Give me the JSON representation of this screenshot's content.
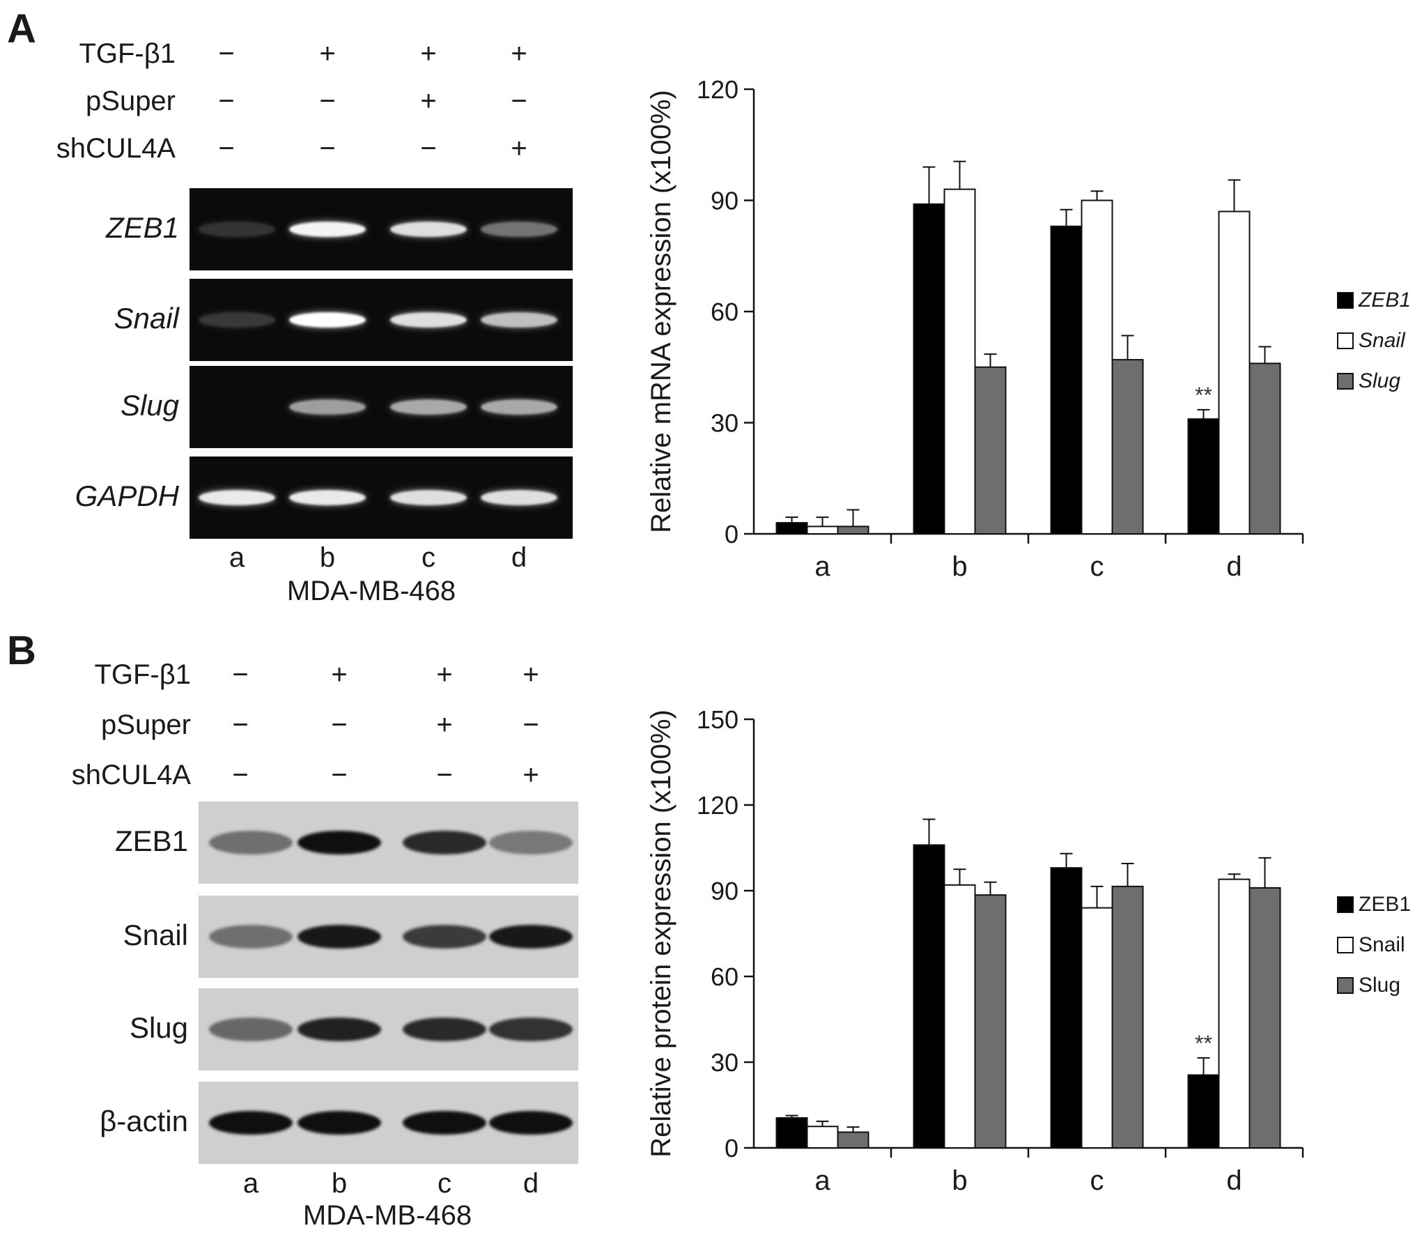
{
  "panels": [
    {
      "letter": "A",
      "conditions": [
        {
          "name": "TGF-β1",
          "signs": [
            "−",
            "+",
            "+",
            "+"
          ]
        },
        {
          "name": "pSuper",
          "signs": [
            "−",
            "−",
            "+",
            "−"
          ]
        },
        {
          "name": "shCUL4A",
          "signs": [
            "−",
            "−",
            "−",
            "+"
          ]
        }
      ],
      "rows": [
        {
          "label": "ZEB1",
          "italic": true
        },
        {
          "label": "Snail",
          "italic": true
        },
        {
          "label": "Slug",
          "italic": true
        },
        {
          "label": "GAPDH",
          "italic": true
        }
      ],
      "lanes": [
        "a",
        "b",
        "c",
        "d"
      ],
      "cell_line": "MDA-MB-468"
    },
    {
      "letter": "B",
      "conditions": [
        {
          "name": "TGF-β1",
          "signs": [
            "−",
            "+",
            "+",
            "+"
          ]
        },
        {
          "name": "pSuper",
          "signs": [
            "−",
            "−",
            "+",
            "−"
          ]
        },
        {
          "name": "shCUL4A",
          "signs": [
            "−",
            "−",
            "−",
            "+"
          ]
        }
      ],
      "rows": [
        {
          "label": "ZEB1",
          "italic": false
        },
        {
          "label": "Snail",
          "italic": false
        },
        {
          "label": "Slug",
          "italic": false
        },
        {
          "label": "β-actin",
          "italic": false
        }
      ],
      "lanes": [
        "a",
        "b",
        "c",
        "d"
      ],
      "cell_line": "MDA-MB-468"
    }
  ],
  "chart_data": [
    {
      "type": "bar",
      "panel": "A",
      "title": "",
      "ylabel": "Relative mRNA expression (x100%)",
      "xlabel": "",
      "categories": [
        "a",
        "b",
        "c",
        "d"
      ],
      "ylim": [
        0,
        120
      ],
      "yticks": [
        0,
        30,
        60,
        90,
        120
      ],
      "legend_italic": true,
      "legend_position": "right",
      "series": [
        {
          "name": "ZEB1",
          "color": "#000000",
          "values": [
            3,
            89,
            83,
            31
          ],
          "errors": [
            1.5,
            10,
            4.5,
            2.5
          ]
        },
        {
          "name": "Snail",
          "color": "#ffffff",
          "values": [
            2,
            93,
            90,
            87
          ],
          "errors": [
            2.5,
            7.5,
            2.5,
            8.5
          ]
        },
        {
          "name": "Slug",
          "color": "#6e6e6e",
          "values": [
            2,
            45,
            47,
            46
          ],
          "errors": [
            4.5,
            3.5,
            6.5,
            4.5
          ]
        }
      ],
      "annotations": [
        {
          "category": "d",
          "series": "ZEB1",
          "text": "**"
        }
      ]
    },
    {
      "type": "bar",
      "panel": "B",
      "title": "",
      "ylabel": "Relative protein expression (x100%)",
      "xlabel": "",
      "categories": [
        "a",
        "b",
        "c",
        "d"
      ],
      "ylim": [
        0,
        150
      ],
      "yticks": [
        0,
        30,
        60,
        90,
        120,
        150
      ],
      "legend_italic": false,
      "legend_position": "right",
      "series": [
        {
          "name": "ZEB1",
          "color": "#000000",
          "values": [
            10.5,
            106,
            98,
            25.5
          ],
          "errors": [
            0.8,
            9,
            5,
            6
          ]
        },
        {
          "name": "Snail",
          "color": "#ffffff",
          "values": [
            7.5,
            92,
            84,
            94
          ],
          "errors": [
            1.8,
            5.5,
            7.5,
            1.8
          ]
        },
        {
          "name": "Slug",
          "color": "#6e6e6e",
          "values": [
            5.5,
            88.5,
            91.5,
            91
          ],
          "errors": [
            1.8,
            4.5,
            8,
            10.5
          ]
        }
      ],
      "annotations": [
        {
          "category": "d",
          "series": "ZEB1",
          "text": "**"
        }
      ]
    }
  ],
  "gel_intensity": {
    "A": [
      [
        0.05,
        0.95,
        0.85,
        0.35
      ],
      [
        0.08,
        1.0,
        0.85,
        0.7
      ],
      [
        0.0,
        0.55,
        0.6,
        0.6
      ],
      [
        0.9,
        0.9,
        0.85,
        0.85
      ]
    ],
    "B": [
      [
        0.45,
        1.0,
        0.85,
        0.4
      ],
      [
        0.45,
        0.95,
        0.75,
        0.95
      ],
      [
        0.5,
        0.9,
        0.85,
        0.8
      ],
      [
        1.0,
        1.0,
        1.0,
        1.0
      ]
    ]
  }
}
